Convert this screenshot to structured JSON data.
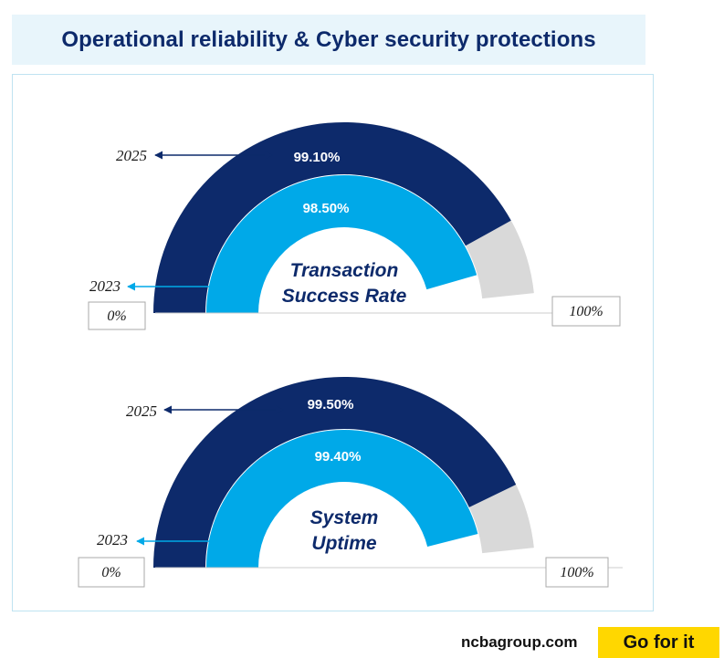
{
  "page_title": "Operational reliability & Cyber security protections",
  "footer": {
    "url": "ncbagroup.com",
    "slogan": "Go for it"
  },
  "colors": {
    "year_2025": "#0d2a6b",
    "year_2023": "#00a9e8",
    "remainder": "#d9d9d9",
    "title_bg": "#e8f5fb"
  },
  "chart_data": [
    {
      "type": "gauge",
      "title": "Transaction Success Rate",
      "title_lines": [
        "Transaction",
        "Success Rate"
      ],
      "range": [
        0,
        100
      ],
      "min_label": "0%",
      "max_label": "100%",
      "series": [
        {
          "name": "2025",
          "value": 99.1,
          "label": "99.10%"
        },
        {
          "name": "2023",
          "value": 98.5,
          "label": "98.50%"
        }
      ]
    },
    {
      "type": "gauge",
      "title": "System Uptime",
      "title_lines": [
        "System",
        "Uptime"
      ],
      "range": [
        0,
        100
      ],
      "min_label": "0%",
      "max_label": "100%",
      "series": [
        {
          "name": "2025",
          "value": 99.5,
          "label": "99.50%"
        },
        {
          "name": "2023",
          "value": 99.4,
          "label": "99.40%"
        }
      ]
    }
  ]
}
